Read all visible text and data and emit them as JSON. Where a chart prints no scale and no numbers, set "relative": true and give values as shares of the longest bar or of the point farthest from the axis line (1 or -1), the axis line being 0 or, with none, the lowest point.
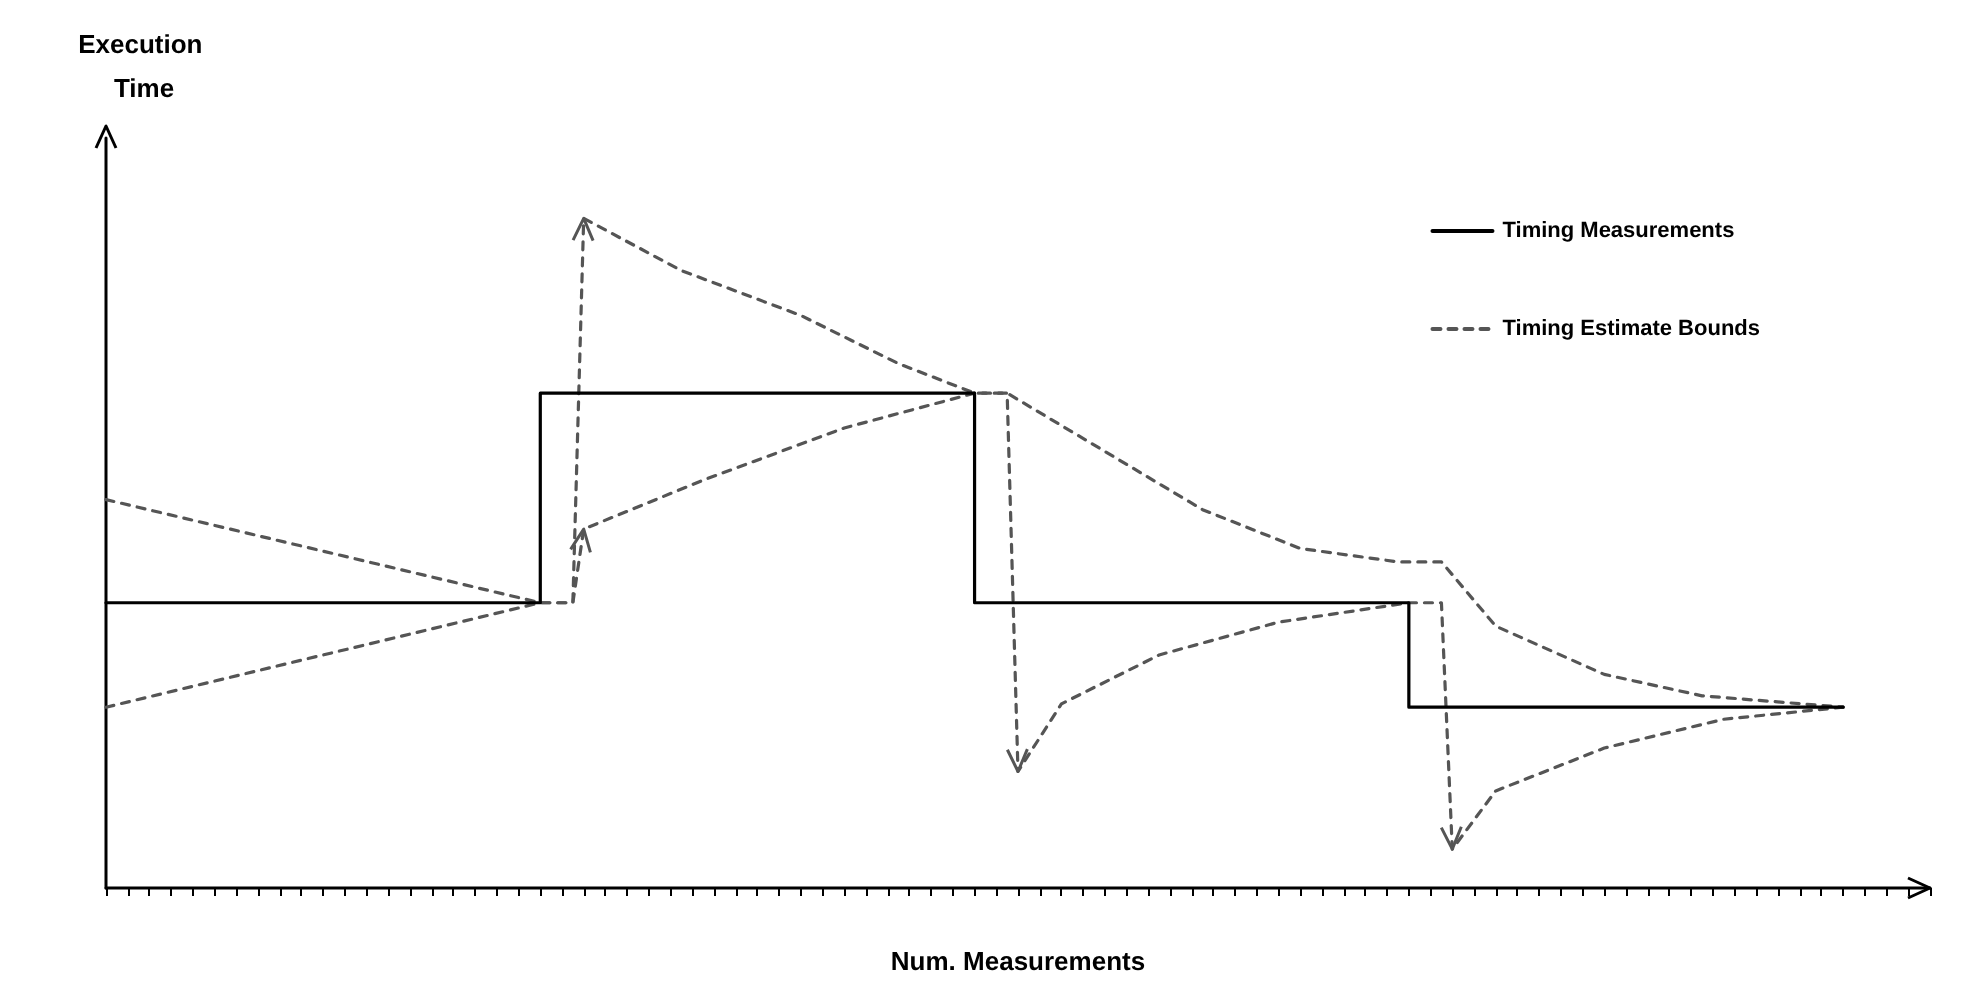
{
  "chart_data": {
    "type": "line",
    "relative": true,
    "xlabel": "Num. Measurements",
    "ylabel": "Execution Time",
    "legend": "top right",
    "grid": false,
    "categories": [
      null,
      null,
      null,
      null,
      null,
      null,
      null,
      null,
      null,
      null,
      null,
      null,
      null,
      null,
      null,
      null,
      null,
      null,
      null,
      null,
      null,
      null,
      null,
      null,
      null,
      null,
      null,
      null,
      null,
      null,
      null,
      null,
      null,
      null,
      null,
      null,
      null,
      null,
      null,
      null,
      null,
      null,
      null,
      null,
      null,
      null,
      null,
      null,
      null,
      null,
      null,
      null,
      null,
      null,
      null,
      null,
      null,
      null,
      null,
      null,
      null,
      null,
      null,
      null,
      null,
      null,
      null,
      null,
      null,
      null,
      null,
      null,
      null,
      null,
      null,
      null,
      null,
      null,
      null,
      null,
      null,
      null,
      null,
      null,
      null,
      null,
      null,
      null,
      null,
      null,
      null,
      null,
      null,
      null,
      null,
      null,
      null,
      null,
      null,
      null,
      null,
      null,
      null,
      null,
      null,
      null,
      null,
      null,
      null,
      null,
      null,
      null,
      null,
      null,
      null,
      null,
      null,
      null,
      null,
      null,
      null,
      null,
      null,
      null,
      null,
      null,
      null,
      null,
      null,
      null,
      null,
      null,
      null,
      null,
      null,
      null,
      null,
      null,
      null,
      null,
      null,
      null,
      null,
      null,
      null,
      null,
      null,
      null,
      null,
      null,
      null,
      null,
      null,
      null,
      null,
      null,
      null,
      null,
      null,
      null,
      null,
      null,
      null,
      null,
      null,
      null,
      null,
      null,
      null
    ],
    "series": [
      {
        "name": "Timing Measurements",
        "type": "step",
        "color": "#000000",
        "line_style": "solid",
        "values": [
          0.426,
          null,
          null,
          null,
          null,
          null,
          null,
          null,
          null,
          null,
          null,
          null,
          null,
          null,
          null,
          null,
          null,
          null,
          null,
          null,
          null,
          null,
          null,
          null,
          null,
          null,
          null,
          null,
          null,
          null,
          null,
          null,
          null,
          null,
          null,
          null,
          null,
          null,
          null,
          null,
          0.739,
          null,
          null,
          null,
          null,
          null,
          null,
          null,
          null,
          null,
          null,
          null,
          null,
          null,
          null,
          null,
          null,
          null,
          null,
          null,
          null,
          null,
          null,
          null,
          null,
          null,
          null,
          null,
          null,
          null,
          null,
          null,
          null,
          null,
          null,
          null,
          null,
          null,
          null,
          null,
          0.426,
          null,
          null,
          null,
          null,
          null,
          null,
          null,
          null,
          null,
          null,
          null,
          null,
          null,
          null,
          null,
          null,
          null,
          null,
          null,
          null,
          null,
          null,
          null,
          null,
          null,
          null,
          null,
          null,
          null,
          null,
          null,
          null,
          null,
          null,
          null,
          null,
          null,
          null,
          null,
          0.27,
          null,
          null,
          null,
          null,
          null,
          null,
          null,
          null,
          null,
          null,
          null,
          null,
          null,
          null,
          null,
          null,
          null,
          null,
          null,
          null,
          null,
          null,
          null,
          null,
          null,
          null,
          null,
          null,
          null,
          null,
          null,
          null,
          null,
          null,
          null,
          null,
          null,
          null,
          null,
          0.27,
          null,
          null,
          null,
          null,
          null,
          null,
          null,
          null
        ]
      },
      {
        "name": "Timing Estimate Bounds",
        "type": "line",
        "color": "#555555",
        "line_style": "dashed",
        "values": [
          0.58,
          null,
          null,
          null,
          null,
          null,
          null,
          null,
          null,
          null,
          null,
          null,
          null,
          null,
          null,
          null,
          null,
          null,
          null,
          null,
          null,
          null,
          null,
          null,
          null,
          null,
          null,
          null,
          null,
          null,
          null,
          null,
          null,
          null,
          null,
          null,
          null,
          null,
          null,
          null,
          0.426,
          null,
          null,
          0.426,
          1.0,
          null,
          null,
          null,
          null,
          null,
          null,
          null,
          null,
          0.922,
          null,
          null,
          null,
          null,
          null,
          null,
          null,
          null,
          null,
          null,
          0.855,
          null,
          null,
          null,
          null,
          null,
          null,
          null,
          null,
          0.783,
          null,
          null,
          null,
          null,
          null,
          null,
          0.739,
          null,
          null,
          0.739,
          null,
          null,
          null,
          null,
          null,
          null,
          null,
          null,
          0.652,
          null,
          null,
          null,
          null,
          null,
          null,
          null,
          null,
          0.565,
          null,
          null,
          null,
          null,
          null,
          null,
          null,
          null,
          0.507,
          null,
          null,
          null,
          null,
          null,
          null,
          null,
          null,
          0.487,
          null,
          null,
          null,
          0.487,
          null,
          null,
          null,
          null,
          0.391,
          null,
          null,
          null,
          null,
          null,
          null,
          null,
          null,
          null,
          0.319,
          null,
          null,
          null,
          null,
          null,
          null,
          null,
          null,
          0.287,
          null,
          null,
          null,
          null,
          null,
          null,
          null,
          null,
          null,
          null,
          null,
          null,
          0.27,
          null,
          null,
          null,
          null,
          null,
          null,
          null,
          null
        ]
      },
      {
        "type": "line",
        "color": "#555555",
        "line_style": "dashed",
        "values": [
          0.27,
          null,
          null,
          null,
          null,
          null,
          null,
          null,
          null,
          null,
          null,
          null,
          null,
          null,
          null,
          null,
          null,
          null,
          null,
          null,
          null,
          null,
          null,
          null,
          null,
          null,
          null,
          null,
          null,
          null,
          null,
          null,
          null,
          null,
          null,
          null,
          null,
          null,
          null,
          null,
          0.426,
          null,
          null,
          0.426,
          0.536,
          null,
          null,
          null,
          null,
          null,
          null,
          null,
          null,
          null,
          null,
          0.609,
          null,
          null,
          null,
          null,
          null,
          null,
          null,
          null,
          null,
          null,
          null,
          null,
          0.687,
          null,
          null,
          null,
          null,
          null,
          null,
          null,
          null,
          null,
          null,
          null,
          0.739,
          null,
          null,
          0.739,
          0.174,
          null,
          null,
          null,
          0.275,
          null,
          null,
          null,
          null,
          null,
          null,
          null,
          null,
          0.348,
          null,
          null,
          null,
          null,
          null,
          null,
          null,
          null,
          null,
          null,
          0.397,
          null,
          null,
          null,
          null,
          null,
          null,
          null,
          null,
          null,
          null,
          null,
          0.426,
          null,
          null,
          0.426,
          0.058,
          null,
          null,
          null,
          0.145,
          null,
          null,
          null,
          null,
          null,
          null,
          null,
          null,
          null,
          0.209,
          null,
          null,
          null,
          null,
          null,
          null,
          null,
          null,
          null,
          null,
          0.252,
          null,
          null,
          null,
          null,
          null,
          null,
          null,
          null,
          null,
          null,
          0.27,
          null,
          null,
          null,
          null,
          null,
          null,
          null,
          null
        ]
      }
    ]
  }
}
